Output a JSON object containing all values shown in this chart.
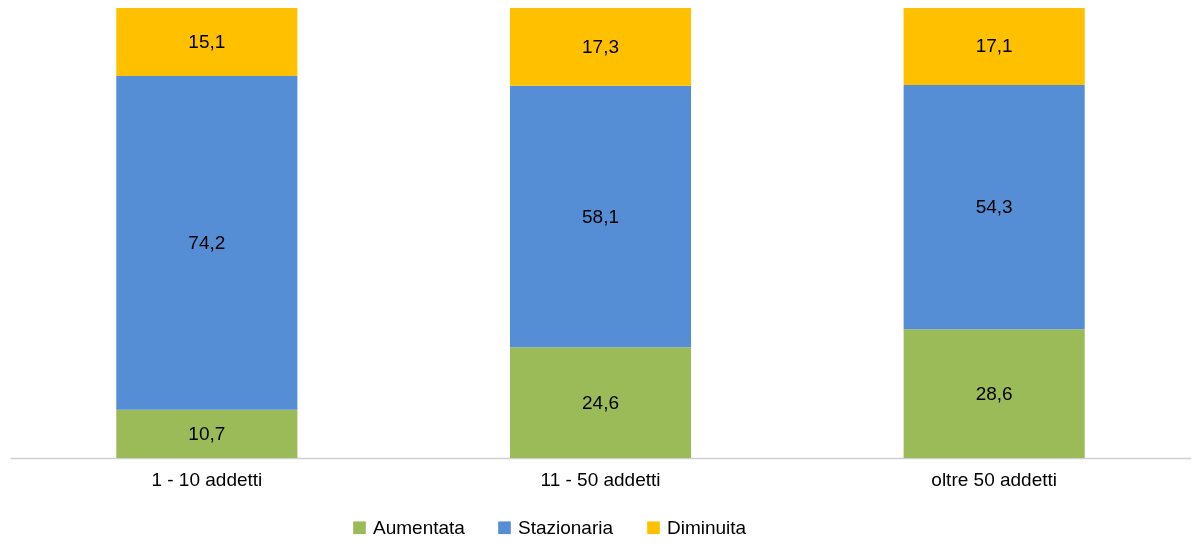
{
  "chart_data": {
    "type": "bar",
    "stacked": true,
    "grid": false,
    "legend": "bottom",
    "categories": [
      "1 - 10 addetti",
      "11 - 50 addetti",
      "oltre 50 addetti"
    ],
    "series": [
      {
        "name": "Aumentata",
        "color": "#9bbb59",
        "values": [
          10.7,
          24.6,
          28.6
        ],
        "value_labels": [
          "10,7",
          "24,6",
          "28,6"
        ]
      },
      {
        "name": "Stazionaria",
        "color": "#558ed5",
        "values": [
          74.2,
          58.1,
          54.3
        ],
        "value_labels": [
          "74,2",
          "58,1",
          "54,3"
        ]
      },
      {
        "name": "Diminuita",
        "color": "#ffc000",
        "values": [
          15.1,
          17.3,
          17.1
        ],
        "value_labels": [
          "15,1",
          "17,3",
          "17,1"
        ]
      }
    ]
  }
}
